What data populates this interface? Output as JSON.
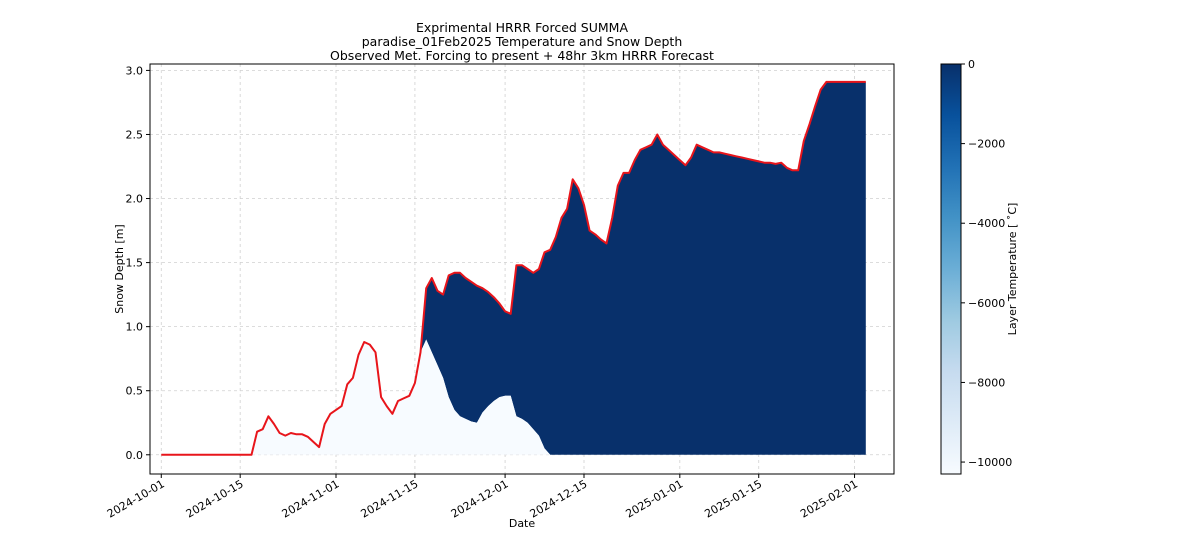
{
  "chart_data": {
    "type": "area",
    "title_lines": [
      "Exprimental HRRR Forced SUMMA",
      "paradise_01Feb2025 Temperature and Snow Depth",
      "Observed Met. Forcing to present + 48hr 3km HRRR Forecast"
    ],
    "xlabel": "Date",
    "ylabel": "Snow Depth [m]",
    "xlim": [
      "2024-09-29",
      "2025-02-08"
    ],
    "ylim": [
      -0.15,
      3.05
    ],
    "x_ticks": [
      "2024-10-01",
      "2024-10-15",
      "2024-11-01",
      "2024-11-15",
      "2024-12-01",
      "2024-12-15",
      "2025-01-01",
      "2025-01-15",
      "2025-02-01"
    ],
    "y_ticks": [
      0.0,
      0.5,
      1.0,
      1.5,
      2.0,
      2.5,
      3.0
    ],
    "y_tick_labels": [
      "0.0",
      "0.5",
      "1.0",
      "1.5",
      "2.0",
      "2.5",
      "3.0"
    ],
    "grid": true,
    "line_color": "#e8151b",
    "fill_cold_color": "#f7fbff",
    "fill_warm_color": "#08306b",
    "colorbar": {
      "label": "Layer Temperature [$^\\circ$C]",
      "label_display": "Layer Temperature [ ˚C]",
      "range": [
        -10300,
        0
      ],
      "ticks": [
        0,
        -2000,
        -4000,
        -6000,
        -8000,
        -10000
      ],
      "tick_labels": [
        "0",
        "−2000",
        "−4000",
        "−6000",
        "−8000",
        "−10000"
      ],
      "colormap": [
        "#f7fbff",
        "#deebf7",
        "#c6dbef",
        "#9ecae1",
        "#6baed6",
        "#4292c6",
        "#2171b5",
        "#08519c",
        "#08306b"
      ]
    },
    "series": [
      {
        "x": [
          "2024-10-01",
          "2024-10-17",
          "2024-10-18",
          "2024-10-19",
          "2024-10-20",
          "2024-10-21",
          "2024-10-22",
          "2024-10-23",
          "2024-10-24",
          "2024-10-25",
          "2024-10-26",
          "2024-10-27",
          "2024-10-28",
          "2024-10-29",
          "2024-10-30",
          "2024-10-31",
          "2024-11-01",
          "2024-11-02",
          "2024-11-03",
          "2024-11-04",
          "2024-11-05",
          "2024-11-06",
          "2024-11-07",
          "2024-11-08",
          "2024-11-09",
          "2024-11-10",
          "2024-11-11",
          "2024-11-12",
          "2024-11-13",
          "2024-11-14",
          "2024-11-15",
          "2024-11-16",
          "2024-11-17",
          "2024-11-18",
          "2024-11-19",
          "2024-11-20",
          "2024-11-21",
          "2024-11-22",
          "2024-11-23",
          "2024-11-24",
          "2024-11-25",
          "2024-11-26",
          "2024-11-27",
          "2024-11-28",
          "2024-11-29",
          "2024-11-30",
          "2024-12-01",
          "2024-12-02",
          "2024-12-03",
          "2024-12-04",
          "2024-12-05",
          "2024-12-06",
          "2024-12-07",
          "2024-12-08",
          "2024-12-09",
          "2024-12-10",
          "2024-12-11",
          "2024-12-12",
          "2024-12-13",
          "2024-12-14",
          "2024-12-15",
          "2024-12-16",
          "2024-12-17",
          "2024-12-18",
          "2024-12-19",
          "2024-12-20",
          "2024-12-21",
          "2024-12-22",
          "2024-12-23",
          "2024-12-24",
          "2024-12-25",
          "2024-12-26",
          "2024-12-27",
          "2024-12-28",
          "2024-12-29",
          "2024-12-30",
          "2024-12-31",
          "2025-01-01",
          "2025-01-02",
          "2025-01-03",
          "2025-01-04",
          "2025-01-05",
          "2025-01-06",
          "2025-01-07",
          "2025-01-08",
          "2025-01-09",
          "2025-01-10",
          "2025-01-11",
          "2025-01-12",
          "2025-01-13",
          "2025-01-14",
          "2025-01-15",
          "2025-01-16",
          "2025-01-17",
          "2025-01-18",
          "2025-01-19",
          "2025-01-20",
          "2025-01-21",
          "2025-01-22",
          "2025-01-23",
          "2025-01-24",
          "2025-01-25",
          "2025-01-26",
          "2025-01-27",
          "2025-01-28",
          "2025-01-29",
          "2025-01-30",
          "2025-01-31",
          "2025-02-01",
          "2025-02-02",
          "2025-02-03"
        ],
        "y": [
          0.0,
          0.0,
          0.18,
          0.2,
          0.3,
          0.24,
          0.17,
          0.15,
          0.17,
          0.16,
          0.16,
          0.14,
          0.1,
          0.06,
          0.24,
          0.32,
          0.35,
          0.38,
          0.55,
          0.6,
          0.78,
          0.88,
          0.86,
          0.8,
          0.45,
          0.38,
          0.32,
          0.42,
          0.44,
          0.46,
          0.56,
          0.8,
          1.3,
          1.38,
          1.28,
          1.25,
          1.4,
          1.42,
          1.42,
          1.38,
          1.35,
          1.32,
          1.3,
          1.27,
          1.23,
          1.18,
          1.12,
          1.1,
          1.48,
          1.48,
          1.45,
          1.42,
          1.45,
          1.58,
          1.6,
          1.7,
          1.85,
          1.92,
          2.15,
          2.08,
          1.95,
          1.75,
          1.72,
          1.68,
          1.65,
          1.85,
          2.1,
          2.2,
          2.2,
          2.3,
          2.38,
          2.4,
          2.42,
          2.5,
          2.42,
          2.38,
          2.34,
          2.3,
          2.26,
          2.32,
          2.42,
          2.4,
          2.38,
          2.36,
          2.36,
          2.35,
          2.34,
          2.33,
          2.32,
          2.31,
          2.3,
          2.29,
          2.28,
          2.28,
          2.27,
          2.28,
          2.24,
          2.22,
          2.22,
          2.45,
          2.58,
          2.72,
          2.85,
          2.91,
          2.91,
          2.91,
          2.91,
          2.91,
          2.91,
          2.91,
          2.91
        ],
        "cold_depth": [
          0.0,
          0.0,
          0.18,
          0.2,
          0.3,
          0.24,
          0.17,
          0.15,
          0.17,
          0.16,
          0.16,
          0.14,
          0.1,
          0.06,
          0.24,
          0.32,
          0.35,
          0.38,
          0.55,
          0.6,
          0.78,
          0.88,
          0.86,
          0.8,
          0.45,
          0.38,
          0.32,
          0.42,
          0.44,
          0.46,
          0.56,
          0.8,
          0.9,
          0.8,
          0.7,
          0.6,
          0.45,
          0.35,
          0.3,
          0.28,
          0.26,
          0.25,
          0.33,
          0.38,
          0.42,
          0.45,
          0.46,
          0.46,
          0.3,
          0.28,
          0.25,
          0.2,
          0.15,
          0.05,
          0.0,
          0.0,
          0.0,
          0.0,
          0.0,
          0.0,
          0.0,
          0.0,
          0.0,
          0.0,
          0.0,
          0.0,
          0.0,
          0.0,
          0.0,
          0.0,
          0.0,
          0.0,
          0.0,
          0.0,
          0.0,
          0.0,
          0.0,
          0.0,
          0.0,
          0.0,
          0.0,
          0.0,
          0.0,
          0.0,
          0.0,
          0.0,
          0.0,
          0.0,
          0.0,
          0.0,
          0.0,
          0.0,
          0.0,
          0.0,
          0.0,
          0.0,
          0.0,
          0.0,
          0.0,
          0.0,
          0.0,
          0.0,
          0.0,
          0.0,
          0.0,
          0.0,
          0.0,
          0.0,
          0.0,
          0.0,
          0.0
        ]
      }
    ]
  }
}
